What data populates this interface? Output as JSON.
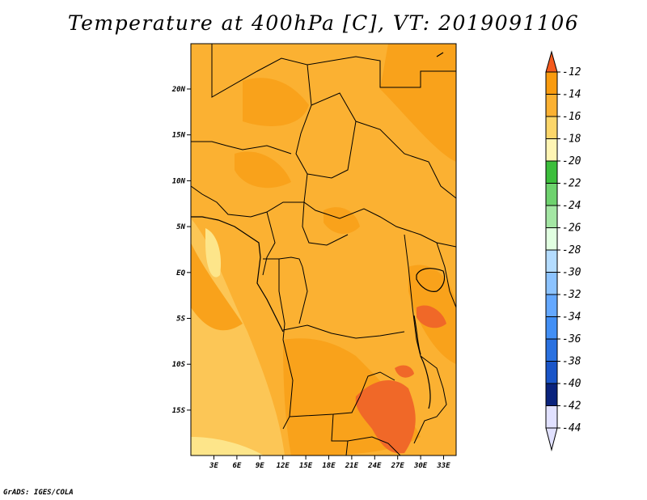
{
  "title": "Temperature at 400hPa [C], VT: 2019091106",
  "credit": "GrADS: IGES/COLA",
  "map": {
    "variable": "Temperature",
    "level": "400hPa",
    "units": "C",
    "valid_time": "2019091106",
    "lon_ticks": [
      "3E",
      "6E",
      "9E",
      "12E",
      "15E",
      "18E",
      "21E",
      "24E",
      "27E",
      "30E",
      "33E"
    ],
    "lat_ticks": [
      "20N",
      "15N",
      "10N",
      "5N",
      "EQ",
      "5S",
      "10S",
      "15S"
    ]
  },
  "colorbar": {
    "labels": [
      "-12",
      "-14",
      "-16",
      "-18",
      "-20",
      "-22",
      "-24",
      "-26",
      "-28",
      "-30",
      "-32",
      "-34",
      "-36",
      "-38",
      "-40",
      "-42",
      "-44"
    ],
    "colors": [
      "#f06828",
      "#f99b0f",
      "#fbb132",
      "#fcd66a",
      "#fff5b4",
      "#3cbe3c",
      "#6ed26e",
      "#a4e6a4",
      "#e1ffe1",
      "#b4dcff",
      "#8cc3ff",
      "#64a8ff",
      "#428ff5",
      "#2a71e0",
      "#1a55c8",
      "#0a237d",
      "#e1e1ff"
    ],
    "top_color": "#f45a1e"
  }
}
